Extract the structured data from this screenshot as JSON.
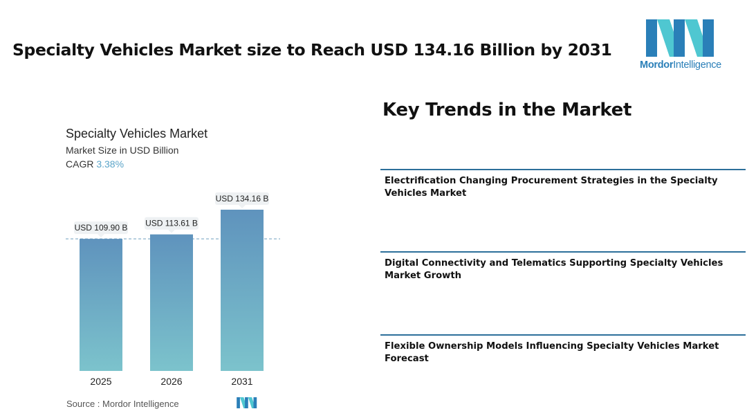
{
  "header": {
    "title": "Specialty Vehicles Market size to Reach USD 134.16 Billion by 2031"
  },
  "logo": {
    "name_bold": "Mordor",
    "name_rest": "Intelligence",
    "colors": {
      "dark": "#2a7fb8",
      "light": "#4fc7d1"
    }
  },
  "chart_panel": {
    "title": "Specialty Vehicles Market",
    "subtitle": "Market Size in USD Billion",
    "cagr_label": "CAGR",
    "cagr_value": "3.38%",
    "source": "Source :  Mordor Intelligence"
  },
  "chart_data": {
    "type": "bar",
    "title": "Specialty Vehicles Market",
    "ylabel": "Market Size in USD Billion",
    "categories": [
      "2025",
      "2026",
      "2031"
    ],
    "values": [
      109.9,
      113.61,
      134.16
    ],
    "data_labels": [
      "USD 109.90 B",
      "USD 113.61 B",
      "USD 134.16 B"
    ],
    "reference_line_value": 109.9,
    "grid": false,
    "colors": {
      "bar_top": "#5f93bd",
      "bar_bottom": "#7cc3cc",
      "reference_line": "#6f9fbf"
    }
  },
  "trends": {
    "heading": "Key Trends in the Market",
    "items": [
      {
        "label": "Electrification Changing Procurement Strategies in the Specialty Vehicles Market"
      },
      {
        "label": "Digital Connectivity and Telematics Supporting Specialty Vehicles Market Growth"
      },
      {
        "label": "Flexible Ownership Models Influencing Specialty Vehicles Market Forecast"
      }
    ],
    "divider_color": "#2c6f9a"
  }
}
